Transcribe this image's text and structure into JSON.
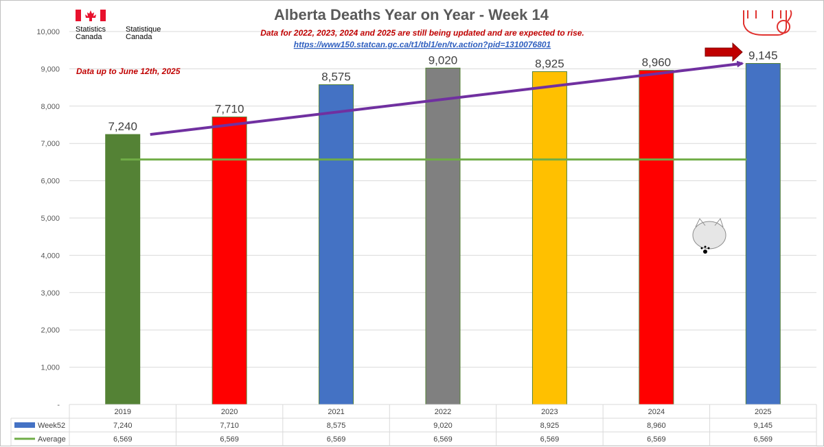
{
  "title": "Alberta Deaths Year on Year - Week 14",
  "notes": {
    "update": "Data for 2022, 2023, 2024 and 2025 are still being updated and are expected to rise.",
    "link": "https://www150.statcan.gc.ca/t1/tbl1/en/tv.action?pid=1310076801",
    "data_up_to": "Data up to June 12th, 2025"
  },
  "logo": {
    "en_line1": "Statistics",
    "en_line2": "Canada",
    "fr_line1": "Statistique",
    "fr_line2": "Canada",
    "flag_color": "#e8112d"
  },
  "table": {
    "row_labels": [
      "Week52",
      "Average"
    ],
    "row_colors": [
      "#4472c4",
      "#70ad47"
    ]
  },
  "colors": {
    "trend_arrow": "#7030a0",
    "average_line": "#70ad47",
    "marker_arrow": "#c00000",
    "bar_border": "#548235"
  },
  "chart_data": {
    "type": "bar",
    "categories": [
      "2019",
      "2020",
      "2021",
      "2022",
      "2023",
      "2024",
      "2025"
    ],
    "series": [
      {
        "name": "Week52",
        "values": [
          7240,
          7710,
          8575,
          9020,
          8925,
          8960,
          9145
        ],
        "labels": [
          "7,240",
          "7,710",
          "8,575",
          "9,020",
          "8,925",
          "8,960",
          "9,145"
        ],
        "bar_colors": [
          "#548235",
          "#ff0000",
          "#4472c4",
          "#808080",
          "#ffc000",
          "#ff0000",
          "#4472c4"
        ]
      },
      {
        "name": "Average",
        "type": "line",
        "values": [
          6569,
          6569,
          6569,
          6569,
          6569,
          6569,
          6569
        ],
        "labels": [
          "6,569",
          "6,569",
          "6,569",
          "6,569",
          "6,569",
          "6,569",
          "6,569"
        ]
      }
    ],
    "trend_arrow": {
      "from_value": 7240,
      "to_value": 9145
    },
    "ylim": [
      0,
      10000
    ],
    "yticks": [
      0,
      1000,
      2000,
      3000,
      4000,
      5000,
      6000,
      7000,
      8000,
      9000,
      10000
    ],
    "ytick_labels": [
      "-",
      "1,000",
      "2,000",
      "3,000",
      "4,000",
      "5,000",
      "6,000",
      "7,000",
      "8,000",
      "9,000",
      "10,000"
    ],
    "grid": true,
    "legend": "data-table"
  }
}
